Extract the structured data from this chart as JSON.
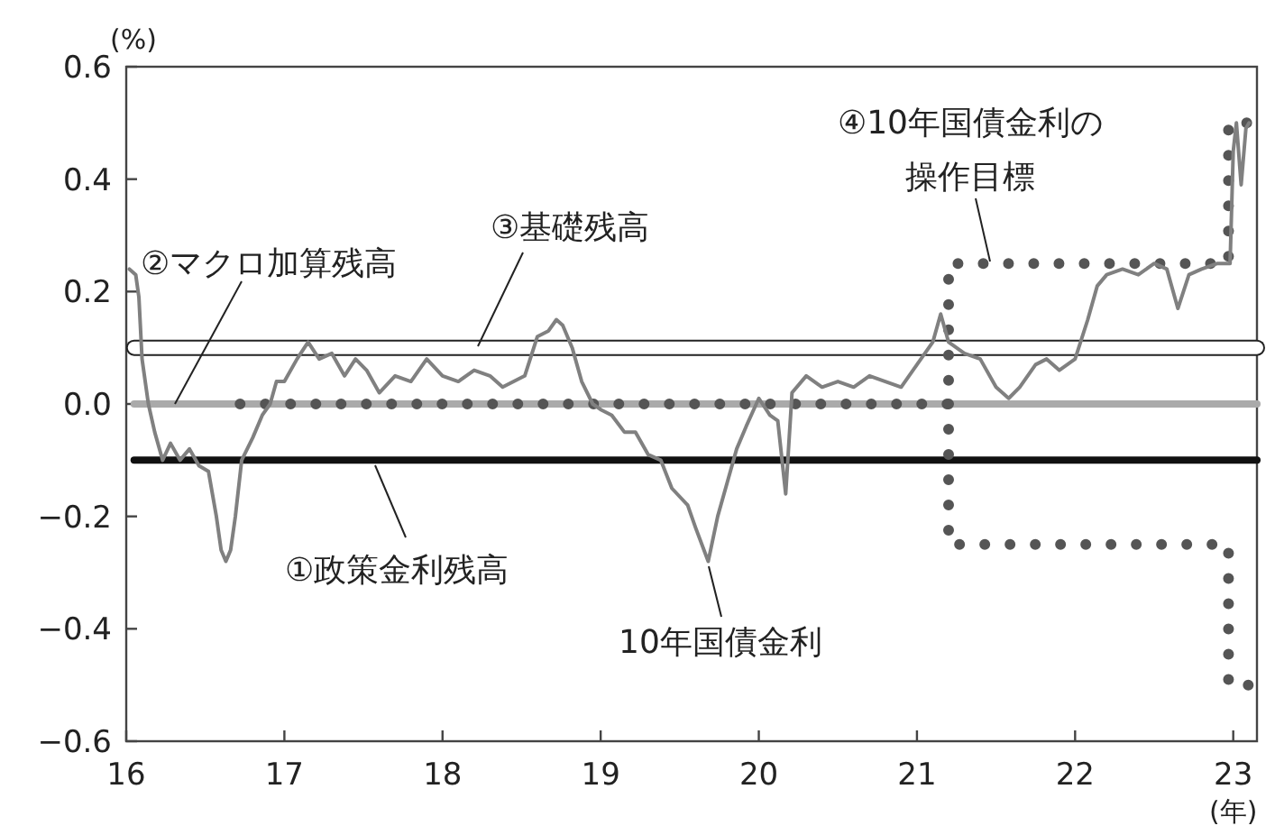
{
  "chart_data": {
    "type": "line",
    "ylabel": "(%)",
    "xlabel": "(年)",
    "xlim": [
      16,
      23.15
    ],
    "ylim": [
      -0.6,
      0.6
    ],
    "xticks": [
      16,
      17,
      18,
      19,
      20,
      21,
      22,
      23
    ],
    "yticks": [
      0.6,
      0.4,
      0.2,
      {
        "value": 0,
        "label": "0.0"
      },
      {
        "value": -0.2,
        "label": "−0.2"
      },
      {
        "value": -0.4,
        "label": "−0.4"
      },
      {
        "value": -0.6,
        "label": "−0.6"
      }
    ],
    "legend": false,
    "grid": false,
    "series": [
      {
        "name": "③基礎残高",
        "color": "#ffffff",
        "line_style": "solid",
        "x": [
          16.05,
          23.15
        ],
        "values": [
          0.1,
          0.1
        ]
      },
      {
        "name": "②マクロ加算残高",
        "color": "#aaaaaa",
        "line_style": "solid",
        "x": [
          16.05,
          23.15
        ],
        "values": [
          0,
          0
        ]
      },
      {
        "name": "①政策金利残高",
        "color": "#111111",
        "line_style": "solid",
        "x": [
          16.05,
          23.15
        ],
        "values": [
          -0.1,
          -0.1
        ]
      },
      {
        "name": "④10年国債金利の操作目標",
        "color": "#555555",
        "line_style": "dotted",
        "x": [
          16.72,
          21.2,
          21.2,
          22.97,
          22.97,
          23.13
        ],
        "values": [
          0,
          0,
          0.25,
          0.25,
          0.5,
          0.5
        ]
      },
      {
        "color": "#555555",
        "line_style": "dotted",
        "x": [
          21.2,
          21.2,
          22.97,
          22.97,
          23.13
        ],
        "values": [
          0,
          -0.25,
          -0.25,
          -0.5,
          -0.5
        ]
      },
      {
        "name": "10年国債金利",
        "color": "#808080",
        "line_style": "solid",
        "x": [
          16.02,
          16.06,
          16.08,
          16.1,
          16.14,
          16.18,
          16.23,
          16.28,
          16.34,
          16.4,
          16.46,
          16.52,
          16.57,
          16.6,
          16.63,
          16.66,
          16.69,
          16.73,
          16.8,
          16.86,
          16.91,
          16.95,
          17.0,
          17.08,
          17.15,
          17.22,
          17.3,
          17.38,
          17.45,
          17.52,
          17.6,
          17.7,
          17.8,
          17.9,
          18.0,
          18.1,
          18.2,
          18.3,
          18.38,
          18.45,
          18.52,
          18.6,
          18.67,
          18.72,
          18.76,
          18.82,
          18.88,
          18.95,
          19.0,
          19.07,
          19.15,
          19.22,
          19.3,
          19.38,
          19.45,
          19.55,
          19.6,
          19.68,
          19.74,
          19.8,
          19.86,
          19.92,
          20.0,
          20.07,
          20.12,
          20.17,
          20.21,
          20.3,
          20.4,
          20.5,
          20.6,
          20.7,
          20.8,
          20.9,
          21.0,
          21.1,
          21.15,
          21.2,
          21.3,
          21.4,
          21.5,
          21.58,
          21.65,
          21.75,
          21.82,
          21.9,
          22.0,
          22.08,
          22.14,
          22.2,
          22.3,
          22.4,
          22.5,
          22.58,
          22.65,
          22.72,
          22.8,
          22.9,
          22.98,
          23.0,
          23.02,
          23.05,
          23.08,
          23.1
        ],
        "values": [
          0.24,
          0.23,
          0.19,
          0.08,
          0.0,
          -0.05,
          -0.1,
          -0.07,
          -0.1,
          -0.08,
          -0.11,
          -0.12,
          -0.2,
          -0.26,
          -0.28,
          -0.26,
          -0.2,
          -0.1,
          -0.06,
          -0.02,
          0.0,
          0.04,
          0.04,
          0.08,
          0.11,
          0.08,
          0.09,
          0.05,
          0.08,
          0.06,
          0.02,
          0.05,
          0.04,
          0.08,
          0.05,
          0.04,
          0.06,
          0.05,
          0.03,
          0.04,
          0.05,
          0.12,
          0.13,
          0.15,
          0.14,
          0.1,
          0.04,
          0.0,
          -0.01,
          -0.02,
          -0.05,
          -0.05,
          -0.09,
          -0.1,
          -0.15,
          -0.18,
          -0.22,
          -0.28,
          -0.2,
          -0.14,
          -0.08,
          -0.04,
          0.01,
          -0.02,
          -0.03,
          -0.16,
          0.02,
          0.05,
          0.03,
          0.04,
          0.03,
          0.05,
          0.04,
          0.03,
          0.07,
          0.11,
          0.16,
          0.11,
          0.09,
          0.08,
          0.03,
          0.01,
          0.03,
          0.07,
          0.08,
          0.06,
          0.08,
          0.15,
          0.21,
          0.23,
          0.24,
          0.23,
          0.25,
          0.24,
          0.17,
          0.23,
          0.24,
          0.25,
          0.25,
          0.45,
          0.5,
          0.39,
          0.49,
          0.5
        ]
      }
    ]
  }
}
